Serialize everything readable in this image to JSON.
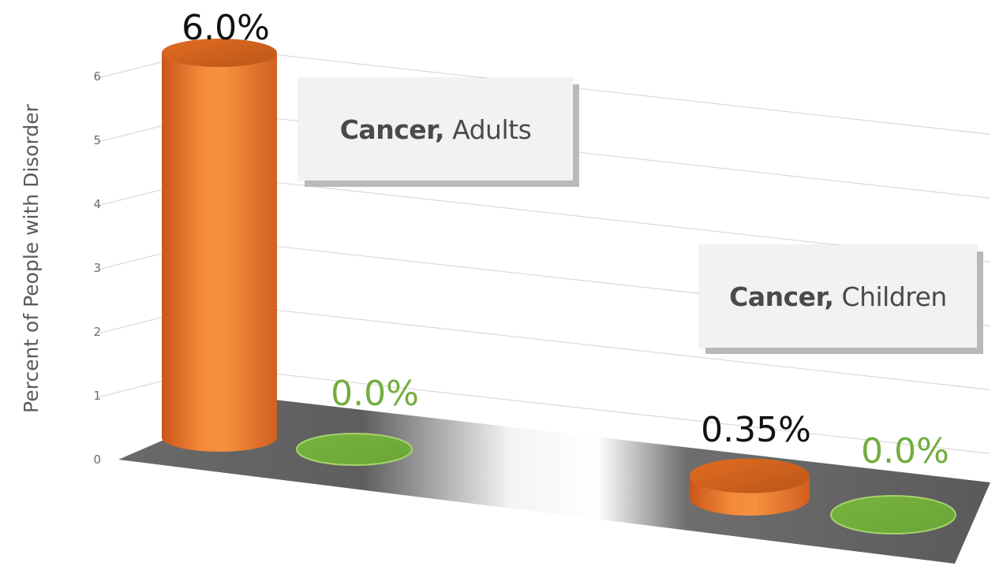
{
  "chart_data": {
    "type": "bar",
    "title": "",
    "ylabel": "Percent of People with Disorder",
    "ylim": [
      0,
      6
    ],
    "yticks": [
      "0",
      "1",
      "2",
      "3",
      "4",
      "5",
      "6"
    ],
    "grid": true,
    "groups": [
      {
        "name_bold": "Cancer,",
        "name_rest": "Adults",
        "bars": [
          {
            "value": 6.0,
            "label": "6.0%",
            "color": "#f07f2b"
          },
          {
            "value": 0.0,
            "label": "0.0%",
            "color": "#72ad3f"
          }
        ]
      },
      {
        "name_bold": "Cancer,",
        "name_rest": "Children",
        "bars": [
          {
            "value": 0.35,
            "label": "0.35%",
            "color": "#f07f2b"
          },
          {
            "value": 0.0,
            "label": "0.0%",
            "color": "#72ad3f"
          }
        ]
      }
    ],
    "colors": {
      "orange": "#f07f2b",
      "green": "#72ad3f",
      "label_dark": "#111111",
      "label_green": "#72ad3f"
    }
  }
}
